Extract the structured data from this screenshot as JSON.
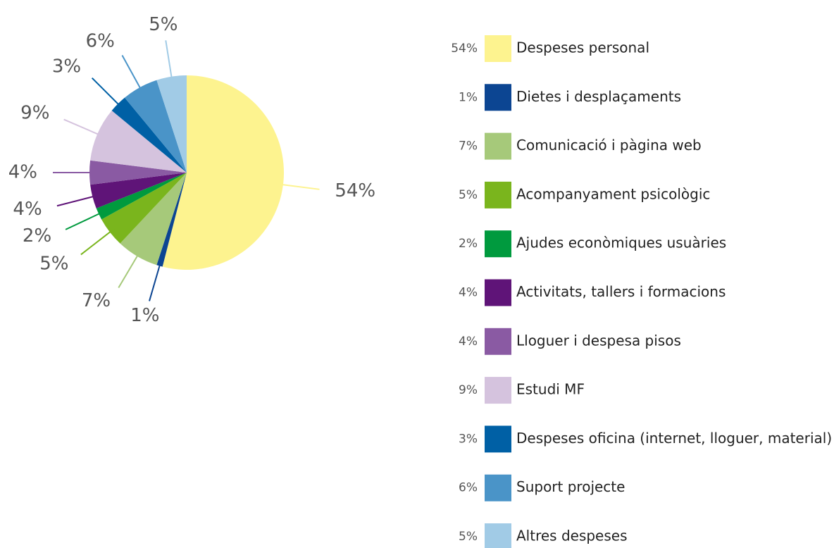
{
  "chart_data": {
    "type": "pie",
    "categories": [
      "Despeses personal",
      "Dietes i desplaçaments",
      "Comunicació i pàgina web",
      "Acompanyament psicològic",
      "Ajudes econòmiques usuàries",
      "Activitats, tallers i formacions",
      "Lloguer i despesa pisos",
      "Estudi MF",
      "Despeses oficina (internet, lloguer, material)",
      "Suport projecte",
      "Altres despeses"
    ],
    "values": [
      54,
      1,
      7,
      5,
      2,
      4,
      4,
      9,
      3,
      6,
      5
    ],
    "value_labels": [
      "54%",
      "1%",
      "7%",
      "5%",
      "2%",
      "4%",
      "4%",
      "9%",
      "3%",
      "6%",
      "5%"
    ],
    "colors": [
      "#fdf38f",
      "#0c4592",
      "#a6c97a",
      "#7ab51d",
      "#009a3e",
      "#5f1478",
      "#8a5aa3",
      "#d5c3de",
      "#0060a5",
      "#4a94c8",
      "#a1cbe6"
    ],
    "legend": "right"
  }
}
